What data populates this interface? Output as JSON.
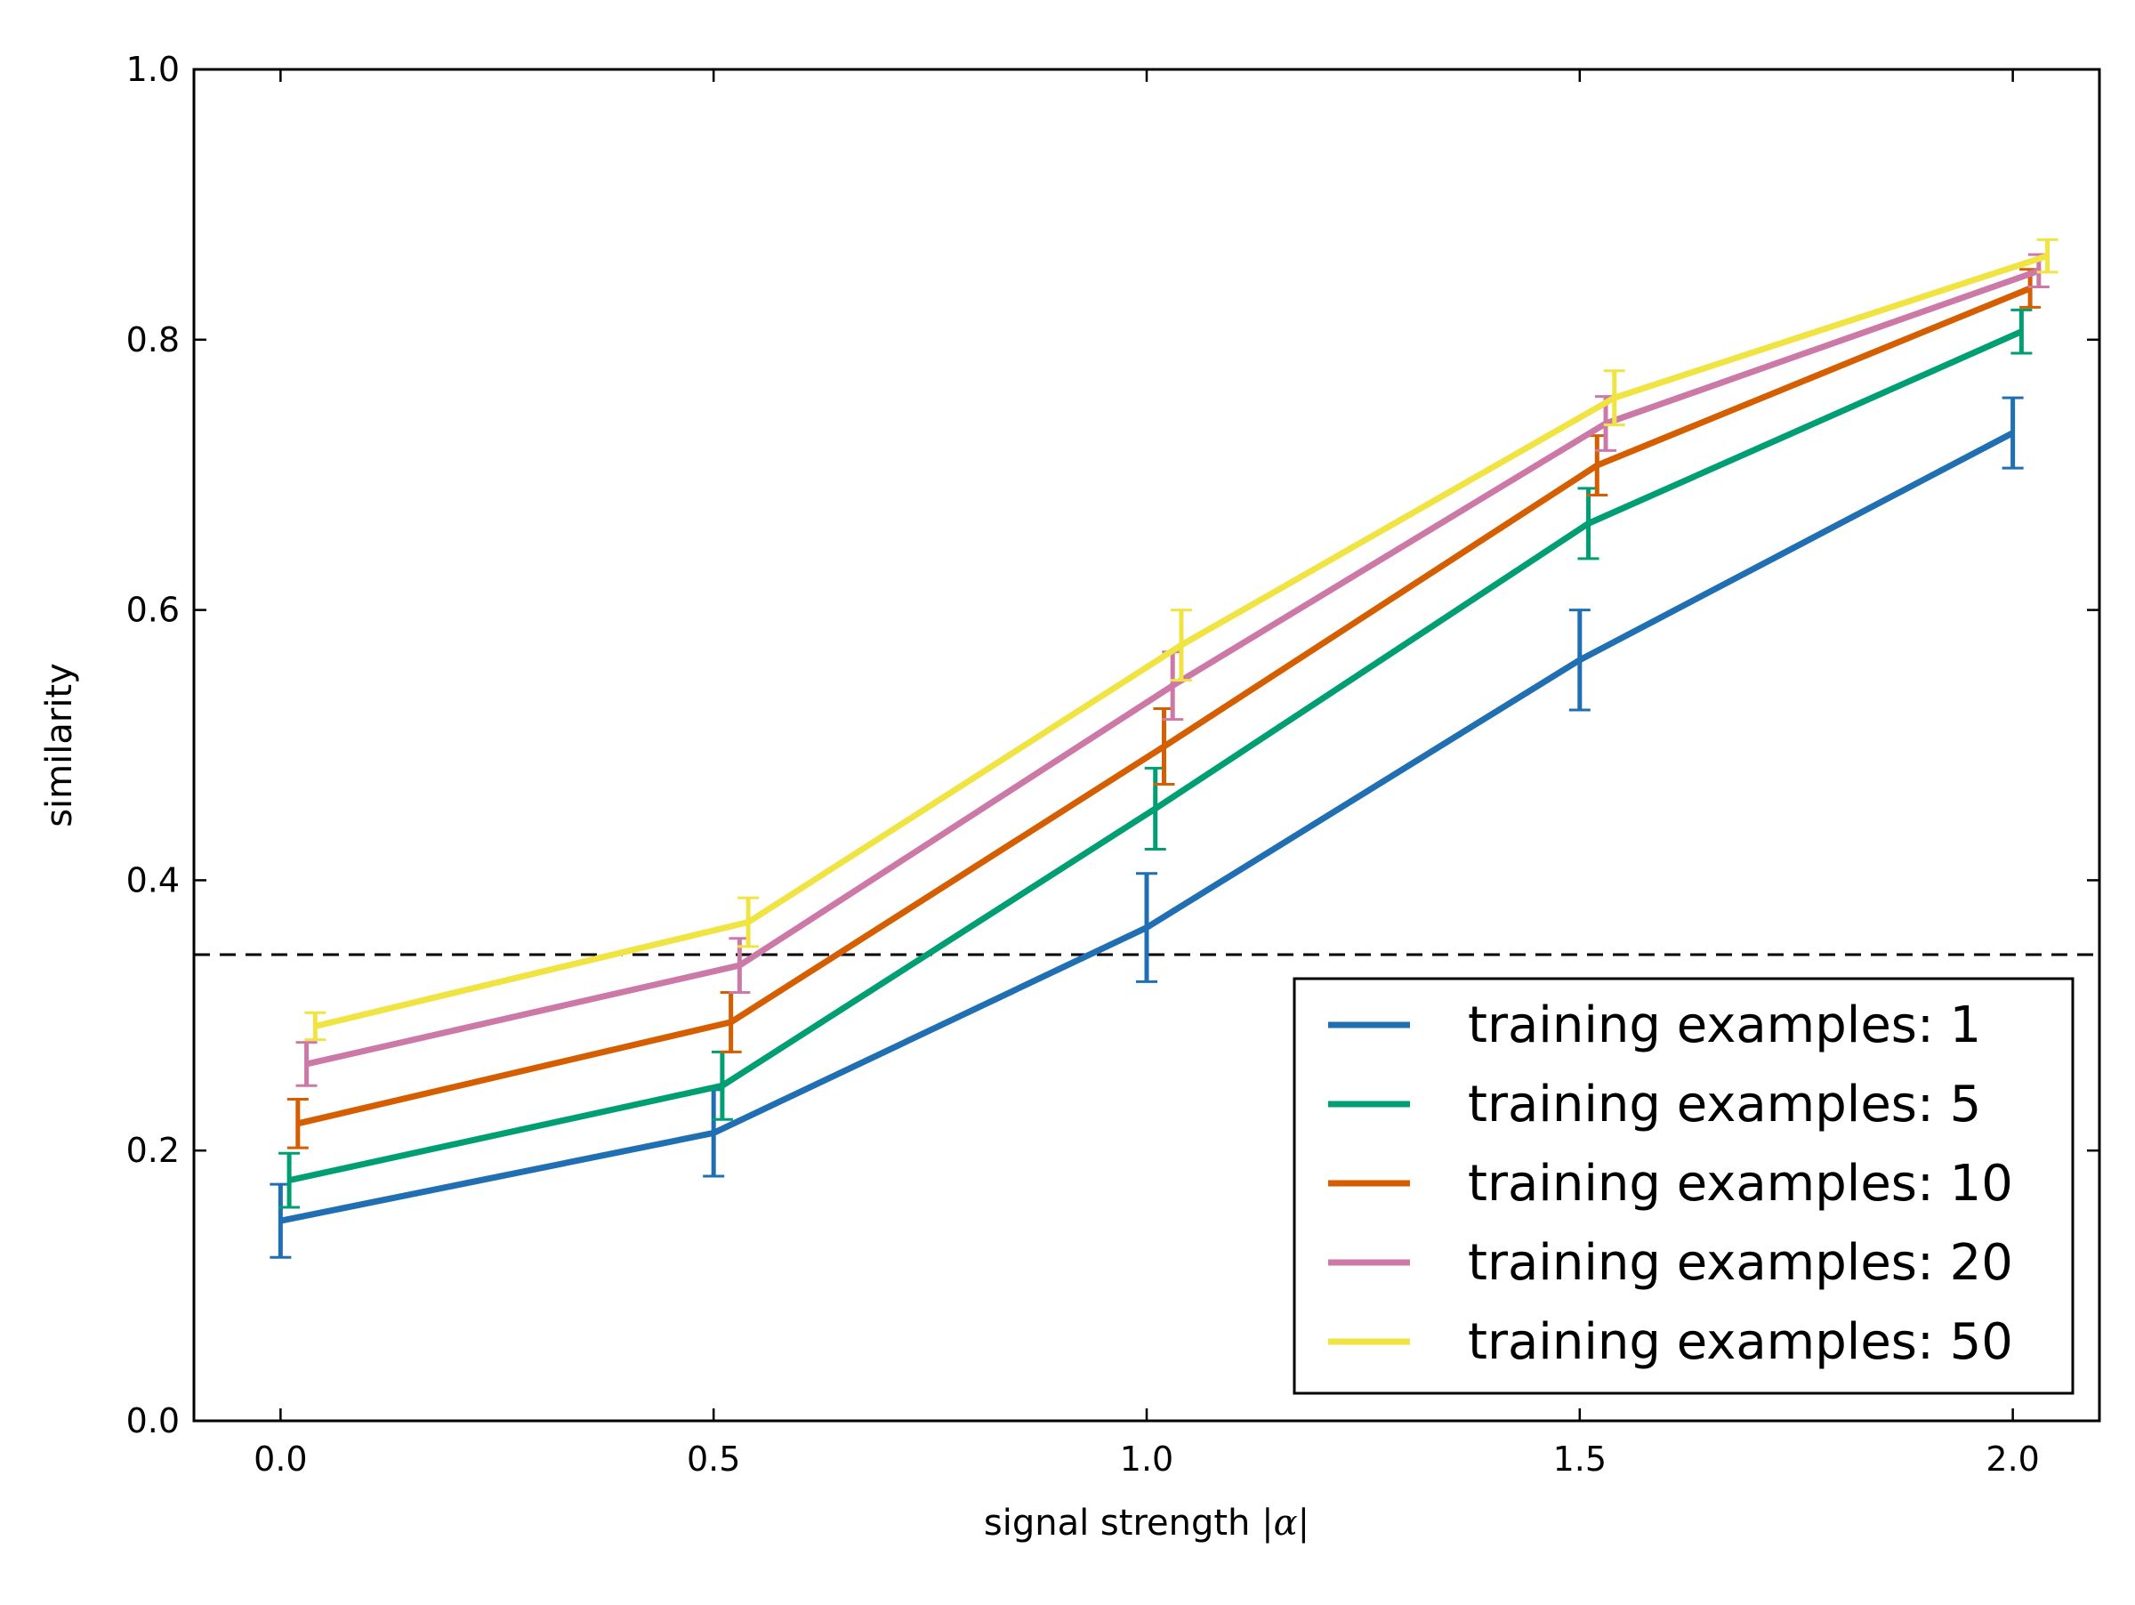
{
  "chart_data": {
    "type": "line",
    "title": "",
    "xlabel_prefix": "signal strength ",
    "xlabel_math": "|α|",
    "ylabel": "similarity",
    "xlim": [
      -0.1,
      2.1
    ],
    "ylim": [
      0.0,
      1.0
    ],
    "x_ticks": [
      0.0,
      0.5,
      1.0,
      1.5,
      2.0
    ],
    "x_tick_labels": [
      "0.0",
      "0.5",
      "1.0",
      "1.5",
      "2.0"
    ],
    "y_ticks": [
      0.0,
      0.2,
      0.4,
      0.6,
      0.8,
      1.0
    ],
    "y_tick_labels": [
      "0.0",
      "0.2",
      "0.4",
      "0.6",
      "0.8",
      "1.0"
    ],
    "grid": false,
    "legend_position": "lower-right",
    "reference_line": {
      "y": 0.345,
      "style": "dashed",
      "color": "#000000"
    },
    "series": [
      {
        "name": "training examples: 1",
        "color": "#1f6fb2",
        "x": [
          0.0,
          0.5,
          1.0,
          1.5,
          2.0
        ],
        "y": [
          0.148,
          0.213,
          0.365,
          0.563,
          0.731
        ],
        "err": [
          0.027,
          0.032,
          0.04,
          0.037,
          0.026
        ]
      },
      {
        "name": "training examples: 5",
        "color": "#009e73",
        "x": [
          0.01,
          0.51,
          1.01,
          1.51,
          2.01
        ],
        "y": [
          0.178,
          0.248,
          0.453,
          0.664,
          0.806
        ],
        "err": [
          0.02,
          0.025,
          0.03,
          0.026,
          0.016
        ]
      },
      {
        "name": "training examples: 10",
        "color": "#d55e00",
        "x": [
          0.02,
          0.52,
          1.02,
          1.52,
          2.02
        ],
        "y": [
          0.22,
          0.295,
          0.499,
          0.707,
          0.838
        ],
        "err": [
          0.018,
          0.022,
          0.028,
          0.022,
          0.014
        ]
      },
      {
        "name": "training examples: 20",
        "color": "#cc79a7",
        "x": [
          0.03,
          0.53,
          1.03,
          1.53,
          2.03
        ],
        "y": [
          0.264,
          0.337,
          0.544,
          0.738,
          0.851
        ],
        "err": [
          0.016,
          0.02,
          0.025,
          0.02,
          0.012
        ]
      },
      {
        "name": "training examples: 50",
        "color": "#f0e442",
        "x": [
          0.04,
          0.54,
          1.04,
          1.54,
          2.04
        ],
        "y": [
          0.292,
          0.369,
          0.574,
          0.757,
          0.862
        ],
        "err": [
          0.01,
          0.018,
          0.026,
          0.02,
          0.012
        ]
      }
    ]
  }
}
